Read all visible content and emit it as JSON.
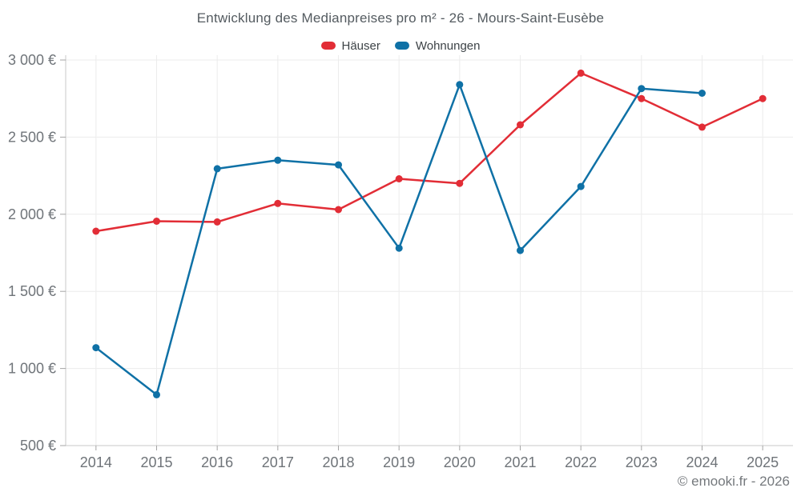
{
  "header": {
    "title": "Entwicklung des Medianpreises pro m² - 26 - Mours-Saint-Eusèbe"
  },
  "footer": {
    "copyright": "© emooki.fr - 2026"
  },
  "colors": {
    "haeuser": "#e22d36",
    "wohnungen": "#0f71a6",
    "grid": "#ececec",
    "axis": "#c9c9c9",
    "tick": "#a5a5a5"
  },
  "chart_data": {
    "type": "line",
    "title": "Entwicklung des Medianpreises pro m² - 26 - Mours-Saint-Eusèbe",
    "categories": [
      "2014",
      "2015",
      "2016",
      "2017",
      "2018",
      "2019",
      "2020",
      "2021",
      "2022",
      "2023",
      "2024",
      "2025"
    ],
    "series": [
      {
        "id": "haeuser",
        "name": "Häuser",
        "color": "#e22d36",
        "values": [
          1890,
          1955,
          1950,
          2070,
          2030,
          2230,
          2200,
          2580,
          2915,
          2750,
          2565,
          2750
        ]
      },
      {
        "id": "wohnungen",
        "name": "Wohnungen",
        "color": "#0f71a6",
        "values": [
          1135,
          830,
          2295,
          2350,
          2320,
          1780,
          2840,
          1765,
          2180,
          2815,
          2785,
          null
        ]
      }
    ],
    "xlabel": "",
    "ylabel": "",
    "ylim": [
      500,
      3000
    ],
    "yticks": [
      {
        "value": 500,
        "label": "500 €"
      },
      {
        "value": 1000,
        "label": "1 000 €"
      },
      {
        "value": 1500,
        "label": "1 500 €"
      },
      {
        "value": 2000,
        "label": "2 000 €"
      },
      {
        "value": 2500,
        "label": "2 500 €"
      },
      {
        "value": 3000,
        "label": "3 000 €"
      }
    ],
    "grid": true,
    "legend_position": "top"
  }
}
